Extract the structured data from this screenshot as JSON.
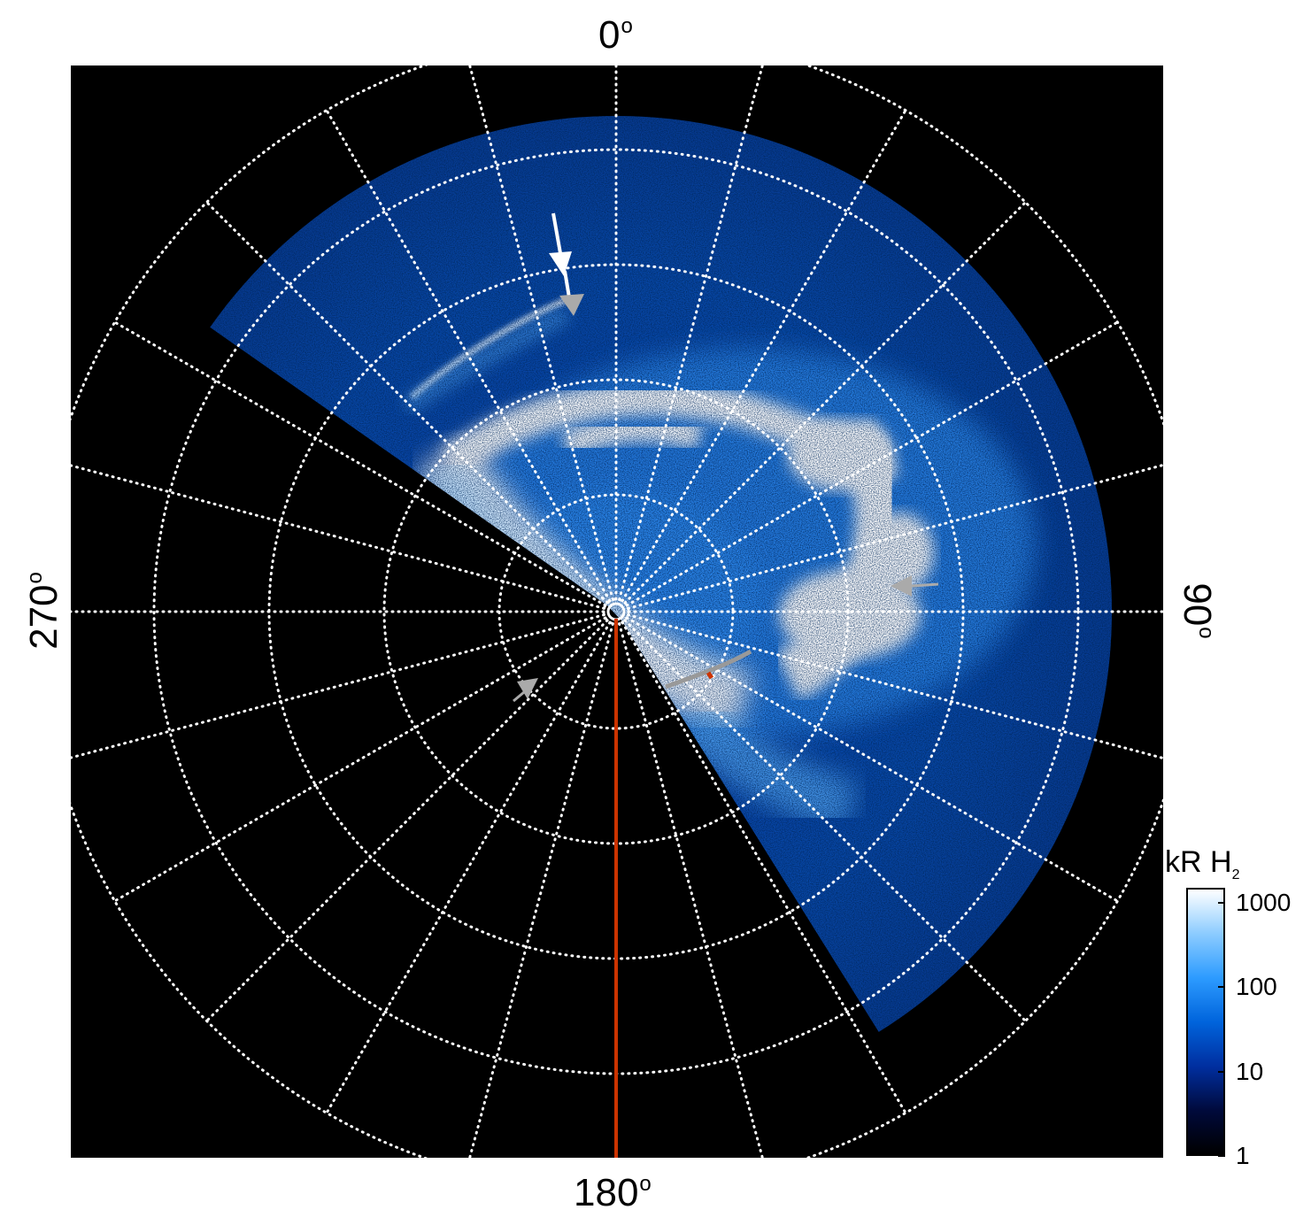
{
  "image": {
    "kind": "polar projection auroral emission map",
    "background_color": "#000000",
    "grid_color": "#ffffff",
    "meridian_line_color": "#cc3300"
  },
  "axis_labels": {
    "top": "0",
    "right": "90",
    "bottom": "180",
    "left": "270",
    "degree_symbol": "o"
  },
  "colorbar": {
    "title": "kR H",
    "title_subscript": "2",
    "scale": "log",
    "ticks": [
      "1000",
      "100",
      "10",
      "1"
    ],
    "colors": [
      "#000000",
      "#000a3c",
      "#002fa0",
      "#0064dc",
      "#2d9bff",
      "#8cccff",
      "#ffffff"
    ]
  },
  "markers": {
    "white_arrow_color": "#ffffff",
    "grey_arrow_color": "#a0a0a0",
    "track_color": "#999999",
    "track_highlight_color": "#cc3300"
  }
}
